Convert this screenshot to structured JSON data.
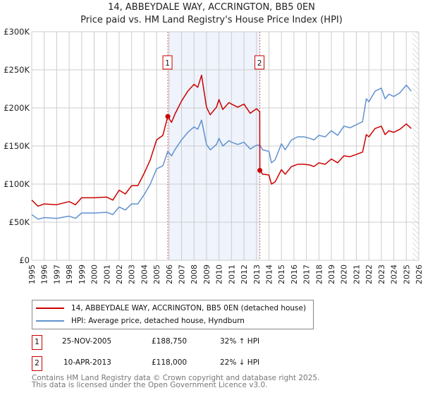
{
  "title_line1": "14, ABBEYDALE WAY, ACCRINGTON, BB5 0EN",
  "title_line2": "Price paid vs. HM Land Registry's House Price Index (HPI)",
  "colors": {
    "price": "#cc0000",
    "hpi": "#6092d0",
    "shade": "#eef3fc",
    "marker_border": "#cc0000"
  },
  "chart_data": {
    "type": "line",
    "ylim": [
      0,
      300000
    ],
    "xlim": [
      1995,
      2026
    ],
    "y_ticks": [
      0,
      50000,
      100000,
      150000,
      200000,
      250000,
      300000
    ],
    "y_tick_labels": [
      "£0",
      "£50K",
      "£100K",
      "£150K",
      "£200K",
      "£250K",
      "£300K"
    ],
    "x_ticks": [
      1995,
      1996,
      1997,
      1998,
      1999,
      2000,
      2001,
      2002,
      2003,
      2004,
      2005,
      2006,
      2007,
      2008,
      2009,
      2010,
      2011,
      2012,
      2013,
      2014,
      2015,
      2016,
      2017,
      2018,
      2019,
      2020,
      2021,
      2022,
      2023,
      2024,
      2025,
      2026
    ],
    "grid": true,
    "forecast_hatch_from": 2025.5,
    "x": [
      1995,
      1995.5,
      1996,
      1997,
      1998,
      1998.5,
      1999,
      2000,
      2001,
      2001.5,
      2002,
      2002.5,
      2003,
      2003.5,
      2004,
      2004.5,
      2005,
      2005.5,
      2005.9,
      2006.2,
      2006.5,
      2007,
      2007.5,
      2008,
      2008.3,
      2008.6,
      2009,
      2009.3,
      2009.8,
      2010,
      2010.3,
      2010.8,
      2011,
      2011.5,
      2012,
      2012.5,
      2013,
      2013.26,
      2013.27,
      2013.5,
      2014,
      2014.2,
      2014.5,
      2015,
      2015.3,
      2015.8,
      2016.3,
      2016.8,
      2017.3,
      2017.6,
      2018,
      2018.5,
      2019,
      2019.5,
      2020,
      2020.5,
      2021,
      2021.5,
      2021.8,
      2022,
      2022.5,
      2023,
      2023.3,
      2023.6,
      2024,
      2024.5,
      2025,
      2025.4
    ],
    "series": [
      {
        "name": "14, ABBEYDALE WAY, ACCRINGTON, BB5 0EN (detached house)",
        "color": "#cc0000",
        "values": [
          79000,
          71000,
          74000,
          73000,
          77000,
          73000,
          82000,
          82000,
          83000,
          79000,
          92000,
          87000,
          98000,
          98000,
          114000,
          132000,
          158000,
          164000,
          189000,
          181000,
          193000,
          209000,
          222000,
          231000,
          227000,
          243000,
          201000,
          191000,
          201000,
          211000,
          198000,
          207000,
          205000,
          201000,
          205000,
          193000,
          199000,
          195000,
          118000,
          113000,
          112000,
          100000,
          103000,
          119000,
          113000,
          123000,
          126000,
          126000,
          125000,
          123000,
          128000,
          126000,
          133000,
          128000,
          137000,
          136000,
          139000,
          142000,
          165000,
          162000,
          173000,
          176000,
          165000,
          170000,
          168000,
          172000,
          179000,
          173000
        ]
      },
      {
        "name": "HPI: Average price, detached house, Hyndburn",
        "color": "#6092d0",
        "values": [
          60000,
          54000,
          56000,
          55000,
          58000,
          55000,
          62000,
          62000,
          63000,
          60000,
          70000,
          66000,
          74000,
          74000,
          86000,
          100000,
          120000,
          124000,
          143000,
          137000,
          146000,
          158000,
          168000,
          175000,
          172000,
          184000,
          152000,
          145000,
          152000,
          160000,
          150000,
          157000,
          155000,
          152000,
          155000,
          146000,
          151000,
          151000,
          151000,
          145000,
          143000,
          128000,
          132000,
          153000,
          145000,
          158000,
          162000,
          162000,
          160000,
          158000,
          164000,
          162000,
          170000,
          164000,
          176000,
          174000,
          178000,
          182000,
          212000,
          208000,
          222000,
          226000,
          212000,
          218000,
          215000,
          220000,
          230000,
          222000
        ]
      }
    ],
    "sales": [
      {
        "label": "1",
        "x": 2005.9,
        "price": 188750,
        "date": "25-NOV-2005",
        "price_text": "£188,750",
        "hpi_text": "32% ↑ HPI"
      },
      {
        "label": "2",
        "x": 2013.27,
        "price": 118000,
        "date": "10-APR-2013",
        "price_text": "£118,000",
        "hpi_text": "22% ↓ HPI"
      }
    ]
  },
  "legend": [
    {
      "label": "14, ABBEYDALE WAY, ACCRINGTON, BB5 0EN (detached house)"
    },
    {
      "label": "HPI: Average price, detached house, Hyndburn"
    }
  ],
  "footer": {
    "line1": "Contains HM Land Registry data © Crown copyright and database right 2025.",
    "line2": "This data is licensed under the Open Government Licence v3.0."
  }
}
